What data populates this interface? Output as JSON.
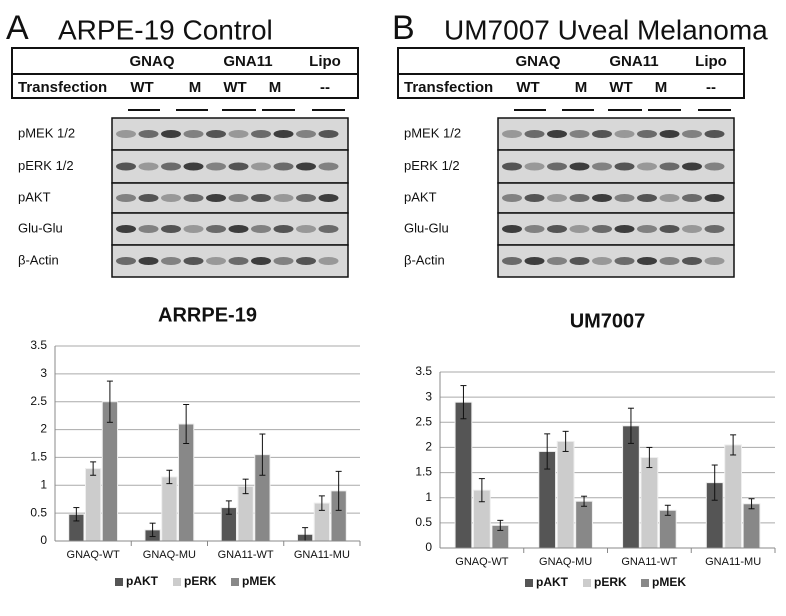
{
  "panels": [
    {
      "letter": "A",
      "title": "ARPE-19 Control",
      "groups": [
        "GNAQ",
        "GNA11",
        "Lipo"
      ],
      "transfection_label": "Transfection",
      "conditions": [
        "WT",
        "M",
        "WT",
        "M",
        "--"
      ],
      "blot_labels": [
        "pMEK 1/2",
        "pERK 1/2",
        "pAKT",
        "Glu-Glu",
        "β-Actin"
      ]
    },
    {
      "letter": "B",
      "title": "UM7007 Uveal Melanoma",
      "groups": [
        "GNAQ",
        "GNA11",
        "Lipo"
      ],
      "transfection_label": "Transfection",
      "conditions": [
        "WT",
        "M",
        "WT",
        "M",
        "--"
      ],
      "blot_labels": [
        "pMEK 1/2",
        "pERK 1/2",
        "pAKT",
        "Glu-Glu",
        "β-Actin"
      ]
    }
  ],
  "chart_data": [
    {
      "type": "bar",
      "title": "ARRPE-19",
      "categories": [
        "GNAQ-WT",
        "GNAQ-MU",
        "GNA11-WT",
        "GNA11-MU"
      ],
      "ylim": [
        0,
        3.5
      ],
      "yticks": [
        0,
        0.5,
        1,
        1.5,
        2,
        2.5,
        3,
        3.5
      ],
      "grid": true,
      "series": [
        {
          "name": "pAKT",
          "color": "#555555",
          "values": [
            0.48,
            0.2,
            0.6,
            0.12
          ],
          "errors": [
            0.12,
            0.12,
            0.12,
            0.12
          ]
        },
        {
          "name": "pERK",
          "color": "#cccccc",
          "values": [
            1.3,
            1.15,
            0.98,
            0.68
          ],
          "errors": [
            0.12,
            0.12,
            0.13,
            0.13
          ]
        },
        {
          "name": "pMEK",
          "color": "#888888",
          "values": [
            2.5,
            2.1,
            1.55,
            0.9
          ],
          "errors": [
            0.37,
            0.35,
            0.37,
            0.35
          ]
        }
      ]
    },
    {
      "type": "bar",
      "title": "UM7007",
      "categories": [
        "GNAQ-WT",
        "GNAQ-MU",
        "GNA11-WT",
        "GNA11-MU"
      ],
      "ylim": [
        0,
        3.5
      ],
      "yticks": [
        0,
        0.5,
        1,
        1.5,
        2,
        2.5,
        3,
        3.5
      ],
      "grid": true,
      "series": [
        {
          "name": "pAKT",
          "color": "#555555",
          "values": [
            2.9,
            1.92,
            2.43,
            1.3
          ],
          "errors": [
            0.33,
            0.35,
            0.35,
            0.35
          ]
        },
        {
          "name": "pERK",
          "color": "#cccccc",
          "values": [
            1.15,
            2.12,
            1.8,
            2.05
          ],
          "errors": [
            0.23,
            0.2,
            0.2,
            0.2
          ]
        },
        {
          "name": "pMEK",
          "color": "#888888",
          "values": [
            0.45,
            0.93,
            0.75,
            0.88
          ],
          "errors": [
            0.1,
            0.1,
            0.1,
            0.1
          ]
        }
      ]
    }
  ]
}
